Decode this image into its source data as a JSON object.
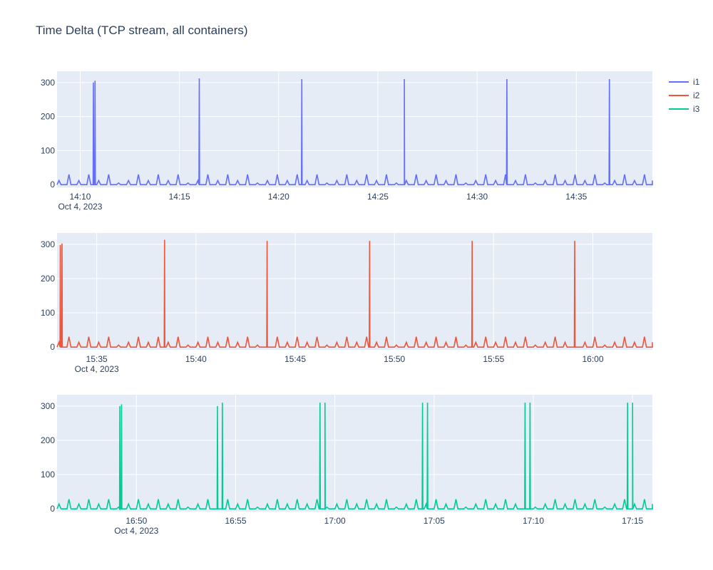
{
  "title": "Time Delta (TCP stream, all containers)",
  "colors": {
    "plot_bg": "#E5ECF6",
    "grid": "#FFFFFF",
    "tick_text": "#2a3f5f"
  },
  "chart_data": [
    {
      "type": "line",
      "date_label": "Oct 4, 2023",
      "x_range": [
        "14:08:50",
        "14:38:50"
      ],
      "y_range": [
        -8,
        333
      ],
      "y_ticks": [
        0,
        100,
        200,
        300
      ],
      "x_ticks": [
        "14:10",
        "14:15",
        "14:20",
        "14:25",
        "14:30",
        "14:35"
      ],
      "grid": true,
      "series": [
        {
          "name": "i1",
          "color": "#636efa",
          "baseline_pattern": [
            12,
            30,
            12,
            30,
            12,
            30,
            5
          ],
          "spikes": [
            {
              "x": "14:10:40",
              "y": 300
            },
            {
              "x": "14:10:45",
              "y": 305
            },
            {
              "x": "14:16:00",
              "y": 312
            },
            {
              "x": "14:21:10",
              "y": 310
            },
            {
              "x": "14:26:20",
              "y": 310
            },
            {
              "x": "14:31:30",
              "y": 310
            },
            {
              "x": "14:36:40",
              "y": 310
            }
          ]
        }
      ]
    },
    {
      "type": "line",
      "date_label": "Oct 4, 2023",
      "x_range": [
        "15:33:00",
        "16:03:00"
      ],
      "y_range": [
        -8,
        333
      ],
      "y_ticks": [
        0,
        100,
        200,
        300
      ],
      "x_ticks": [
        "15:35",
        "15:40",
        "15:45",
        "15:50",
        "15:55",
        "16:00"
      ],
      "grid": true,
      "series": [
        {
          "name": "i2",
          "color": "#ef553b",
          "baseline_pattern": [
            14,
            30,
            14,
            30,
            14,
            30,
            6
          ],
          "spikes": [
            {
              "x": "15:33:10",
              "y": 298
            },
            {
              "x": "15:33:15",
              "y": 302
            },
            {
              "x": "15:38:25",
              "y": 313
            },
            {
              "x": "15:43:35",
              "y": 310
            },
            {
              "x": "15:48:45",
              "y": 310
            },
            {
              "x": "15:53:55",
              "y": 310
            },
            {
              "x": "15:59:05",
              "y": 310
            }
          ]
        }
      ]
    },
    {
      "type": "line",
      "date_label": "Oct 4, 2023",
      "x_range": [
        "16:46:00",
        "17:16:00"
      ],
      "y_range": [
        -8,
        333
      ],
      "y_ticks": [
        0,
        100,
        200,
        300
      ],
      "x_ticks": [
        "16:50",
        "16:55",
        "17:00",
        "17:05",
        "17:10",
        "17:15"
      ],
      "grid": true,
      "series": [
        {
          "name": "i3",
          "color": "#00cc96",
          "baseline_pattern": [
            14,
            28,
            14,
            28,
            14,
            28,
            5
          ],
          "spikes": [
            {
              "x": "16:49:10",
              "y": 300
            },
            {
              "x": "16:49:15",
              "y": 305
            },
            {
              "x": "16:54:05",
              "y": 300
            },
            {
              "x": "16:54:20",
              "y": 310
            },
            {
              "x": "16:59:15",
              "y": 310
            },
            {
              "x": "16:59:30",
              "y": 310
            },
            {
              "x": "17:04:25",
              "y": 310
            },
            {
              "x": "17:04:40",
              "y": 310
            },
            {
              "x": "17:09:35",
              "y": 310
            },
            {
              "x": "17:09:50",
              "y": 310
            },
            {
              "x": "17:14:45",
              "y": 310
            },
            {
              "x": "17:15:00",
              "y": 310
            }
          ]
        }
      ]
    }
  ],
  "legend": {
    "placement": "top-right",
    "items": [
      {
        "label": "i1",
        "color": "#636efa"
      },
      {
        "label": "i2",
        "color": "#ef553b"
      },
      {
        "label": "i3",
        "color": "#00cc96"
      }
    ]
  }
}
